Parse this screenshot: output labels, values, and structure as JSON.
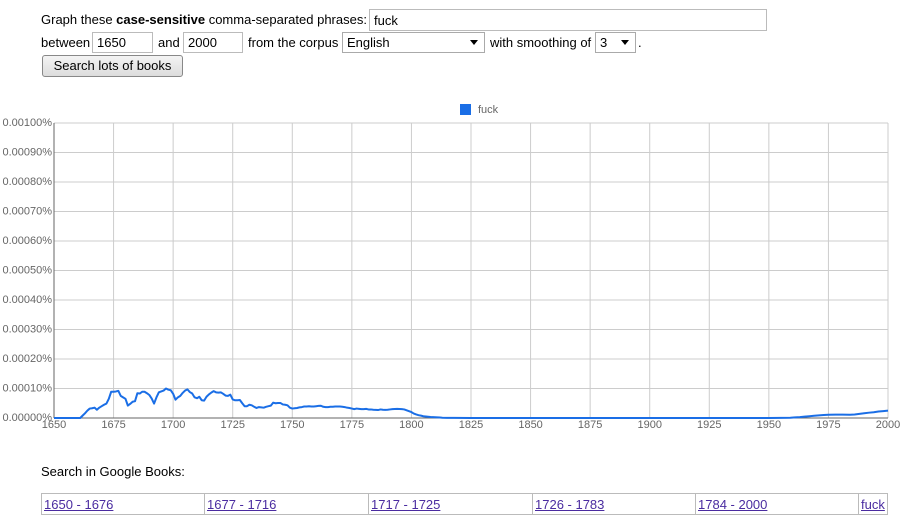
{
  "form": {
    "prompt_before": "Graph these",
    "prompt_bold": "case-sensitive",
    "prompt_after": "comma-separated phrases:",
    "phrase": "fuck",
    "between_label": "between",
    "start_year": "1650",
    "and_label": "and",
    "end_year": "2000",
    "corpus_label": "from the corpus",
    "corpus": "English",
    "smoothing_label": "with smoothing of",
    "smoothing": "3",
    "period": ".",
    "button": "Search lots of books"
  },
  "chart_data": {
    "type": "line",
    "x": [
      1650,
      1660,
      1661,
      1662,
      1663,
      1664,
      1665,
      1666,
      1667,
      1668,
      1669,
      1670,
      1671,
      1672,
      1673,
      1674,
      1675,
      1676,
      1677,
      1678,
      1679,
      1680,
      1681,
      1682,
      1683,
      1684,
      1685,
      1686,
      1687,
      1688,
      1689,
      1690,
      1691,
      1692,
      1693,
      1694,
      1695,
      1696,
      1697,
      1698,
      1699,
      1700,
      1701,
      1702,
      1703,
      1704,
      1705,
      1706,
      1707,
      1708,
      1709,
      1710,
      1711,
      1712,
      1713,
      1714,
      1715,
      1716,
      1717,
      1718,
      1719,
      1720,
      1721,
      1722,
      1723,
      1724,
      1725,
      1726,
      1727,
      1728,
      1729,
      1730,
      1731,
      1732,
      1733,
      1734,
      1735,
      1736,
      1737,
      1738,
      1739,
      1740,
      1741,
      1742,
      1743,
      1744,
      1745,
      1746,
      1747,
      1748,
      1749,
      1750,
      1751,
      1752,
      1753,
      1754,
      1755,
      1756,
      1757,
      1758,
      1759,
      1760,
      1761,
      1762,
      1763,
      1764,
      1765,
      1766,
      1767,
      1768,
      1769,
      1770,
      1771,
      1772,
      1773,
      1774,
      1775,
      1776,
      1777,
      1778,
      1779,
      1780,
      1781,
      1782,
      1783,
      1784,
      1785,
      1786,
      1787,
      1788,
      1789,
      1790,
      1791,
      1792,
      1793,
      1794,
      1795,
      1796,
      1797,
      1798,
      1799,
      1800,
      1801,
      1802,
      1803,
      1804,
      1805,
      1806,
      1807,
      1808,
      1809,
      1810,
      1811,
      1812,
      1813,
      1815,
      1818,
      1825,
      1850,
      1875,
      1900,
      1925,
      1950,
      1955,
      1959,
      1961,
      1963,
      1965,
      1967,
      1969,
      1971,
      1973,
      1975,
      1978,
      1981,
      1984,
      1986,
      1988,
      1990,
      1992,
      1994,
      1996,
      1998,
      2000
    ],
    "series": [
      {
        "name": "fuck",
        "color": "#1a6ee6",
        "values": [
          0,
          0,
          0,
          8e-06,
          1.6e-05,
          2.5e-05,
          3.2e-05,
          3.3e-05,
          3.5e-05,
          2.8e-05,
          3.5e-05,
          4e-05,
          4.5e-05,
          4.9e-05,
          6.5e-05,
          8.9e-05,
          8.9e-05,
          9e-05,
          9.2e-05,
          7.5e-05,
          7e-05,
          6.5e-05,
          4.2e-05,
          4.8e-05,
          5.5e-05,
          5.7e-05,
          8.4e-05,
          8.3e-05,
          8.9e-05,
          8.9e-05,
          8.4e-05,
          7.8e-05,
          6.6e-05,
          4.9e-05,
          7e-05,
          8.7e-05,
          9e-05,
          9.3e-05,
          0.0001,
          9.6e-05,
          9.4e-05,
          8.2e-05,
          6.2e-05,
          7e-05,
          7.5e-05,
          8.5e-05,
          9.3e-05,
          9.7e-05,
          8.8e-05,
          8.3e-05,
          7e-05,
          6.7e-05,
          7.2e-05,
          6e-05,
          5.9e-05,
          7.2e-05,
          8e-05,
          8.6e-05,
          9.1e-05,
          8.7e-05,
          8.6e-05,
          8.7e-05,
          8.2e-05,
          7.6e-05,
          7.5e-05,
          7.9e-05,
          6.3e-05,
          6e-05,
          6e-05,
          6.1e-05,
          5e-05,
          4e-05,
          4e-05,
          4.5e-05,
          4.3e-05,
          3.8e-05,
          3.4e-05,
          3.7e-05,
          3.6e-05,
          3.5e-05,
          3.8e-05,
          4e-05,
          4.2e-05,
          5.2e-05,
          5e-05,
          5.1e-05,
          5.1e-05,
          4.6e-05,
          4.5e-05,
          4.3e-05,
          3.5e-05,
          3.2e-05,
          3.3e-05,
          3.4e-05,
          3.6e-05,
          3.7e-05,
          3.9e-05,
          3.9e-05,
          4e-05,
          3.9e-05,
          3.9e-05,
          4e-05,
          4.1e-05,
          4.15e-05,
          3.8e-05,
          3.7e-05,
          3.7e-05,
          3.8e-05,
          3.8e-05,
          3.9e-05,
          3.9e-05,
          3.9e-05,
          3.8e-05,
          3.7e-05,
          3.5e-05,
          3.4e-05,
          3.2e-05,
          3e-05,
          3.2e-05,
          3.1e-05,
          3e-05,
          3e-05,
          3.1e-05,
          2.9e-05,
          2.9e-05,
          2.8e-05,
          2.75e-05,
          2.7e-05,
          2.9e-05,
          2.8e-05,
          2.75e-05,
          2.8e-05,
          2.9e-05,
          3e-05,
          3.05e-05,
          3.1e-05,
          3.05e-05,
          3e-05,
          2.9e-05,
          2.6e-05,
          2.3e-05,
          2e-05,
          1.5e-05,
          1.2e-05,
          9.5e-06,
          8e-06,
          6e-06,
          5e-06,
          4.2e-06,
          3.5e-06,
          3e-06,
          2.5e-06,
          2e-06,
          1.5e-06,
          1e-06,
          6e-07,
          3e-07,
          1e-07,
          1e-07,
          1e-07,
          1e-07,
          1e-07,
          2e-07,
          5e-07,
          1e-06,
          2e-06,
          3e-06,
          4.5e-06,
          6e-06,
          7.5e-06,
          9e-06,
          1e-05,
          1.1e-05,
          1.15e-05,
          1.15e-05,
          1.1e-05,
          1.2e-05,
          1.4e-05,
          1.6e-05,
          1.8e-05,
          1.95e-05,
          2.2e-05,
          2.35e-05,
          2.5e-05
        ]
      }
    ],
    "xlim": [
      1650,
      2000
    ],
    "xticks": [
      1650,
      1675,
      1700,
      1725,
      1750,
      1775,
      1800,
      1825,
      1850,
      1875,
      1900,
      1925,
      1950,
      1975,
      2000
    ],
    "ylim": [
      0,
      0.001
    ],
    "yticks": [
      {
        "value": 0,
        "label": "0.00000%"
      },
      {
        "value": 0.0001,
        "label": "0.00010%"
      },
      {
        "value": 0.0002,
        "label": "0.00020%"
      },
      {
        "value": 0.0003,
        "label": "0.00030%"
      },
      {
        "value": 0.0004,
        "label": "0.00040%"
      },
      {
        "value": 0.0005,
        "label": "0.00050%"
      },
      {
        "value": 0.0006,
        "label": "0.00060%"
      },
      {
        "value": 0.0007,
        "label": "0.00070%"
      },
      {
        "value": 0.0008,
        "label": "0.00080%"
      },
      {
        "value": 0.0009,
        "label": "0.00090%"
      },
      {
        "value": 0.001,
        "label": "0.00100%"
      }
    ],
    "grid": true,
    "legend": "top"
  },
  "books_search": {
    "label": "Search in Google Books:",
    "links": [
      "1650 - 1676",
      "1677 - 1716",
      "1717 - 1725",
      "1726 - 1783",
      "1784 - 2000",
      "fuck"
    ]
  }
}
